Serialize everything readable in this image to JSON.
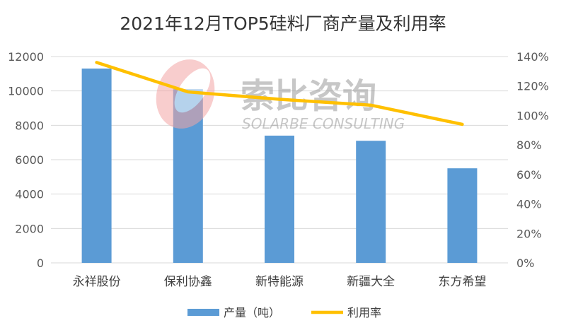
{
  "chart_data": {
    "type": "bar+line",
    "title": "2021年12月TOP5硅料厂商产量及利用率",
    "categories": [
      "永祥股份",
      "保利协鑫",
      "新特能源",
      "新疆大全",
      "东方希望"
    ],
    "series": [
      {
        "name": "产量（吨）",
        "type": "bar",
        "axis": "left",
        "color": "#5B9BD5",
        "values": [
          11300,
          10100,
          7400,
          7100,
          5500
        ]
      },
      {
        "name": "利用率",
        "type": "line",
        "axis": "right",
        "color": "#FFC000",
        "values": [
          1.36,
          1.16,
          1.11,
          1.07,
          0.94
        ]
      }
    ],
    "y_left": {
      "lim": [
        0,
        12000
      ],
      "ticks": [
        "0",
        "2000",
        "4000",
        "6000",
        "8000",
        "10000",
        "12000"
      ]
    },
    "y_right": {
      "lim": [
        0,
        1.4
      ],
      "ticks": [
        "0%",
        "20%",
        "40%",
        "60%",
        "80%",
        "100%",
        "120%",
        "140%"
      ]
    },
    "grid": true,
    "legend": "bottom",
    "watermark": {
      "text_cn": "索比咨询",
      "text_en": "SOLARBE CONSULTING"
    }
  }
}
